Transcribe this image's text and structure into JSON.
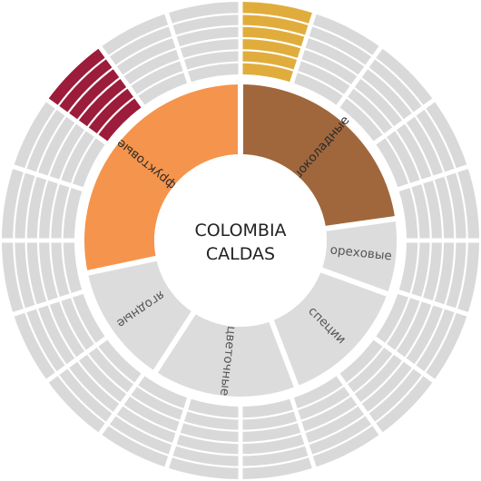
{
  "center": {
    "line1": "COLOMBIA",
    "line2": "CALDAS"
  },
  "colors": {
    "inactive_fill": "#dcdcdc",
    "outer_inactive": "#d9d9d9",
    "separator": "#ffffff",
    "active_label": "#2b2b2b",
    "inactive_label": "#555555"
  },
  "inner_segments": [
    {
      "id": "chocolate",
      "label": "шоколадные",
      "active": true,
      "color": "#a0673c"
    },
    {
      "id": "nutty",
      "label": "ореховые",
      "active": false,
      "color": "#dcdcdc"
    },
    {
      "id": "spicy",
      "label": "специи",
      "active": false,
      "color": "#dcdcdc"
    },
    {
      "id": "floral",
      "label": "цветочные",
      "active": false,
      "color": "#dcdcdc"
    },
    {
      "id": "berry",
      "label": "ягодные",
      "active": false,
      "color": "#dcdcdc"
    },
    {
      "id": "fruity",
      "label": "фруктовые",
      "active": true,
      "color": "#f5944c"
    }
  ],
  "outer_ring": {
    "segment_count": 20,
    "band_count": 6,
    "highlighted": [
      {
        "index": 0,
        "color": "#e0ad3d"
      },
      {
        "index": 17,
        "color": "#9b1c3b"
      }
    ]
  }
}
